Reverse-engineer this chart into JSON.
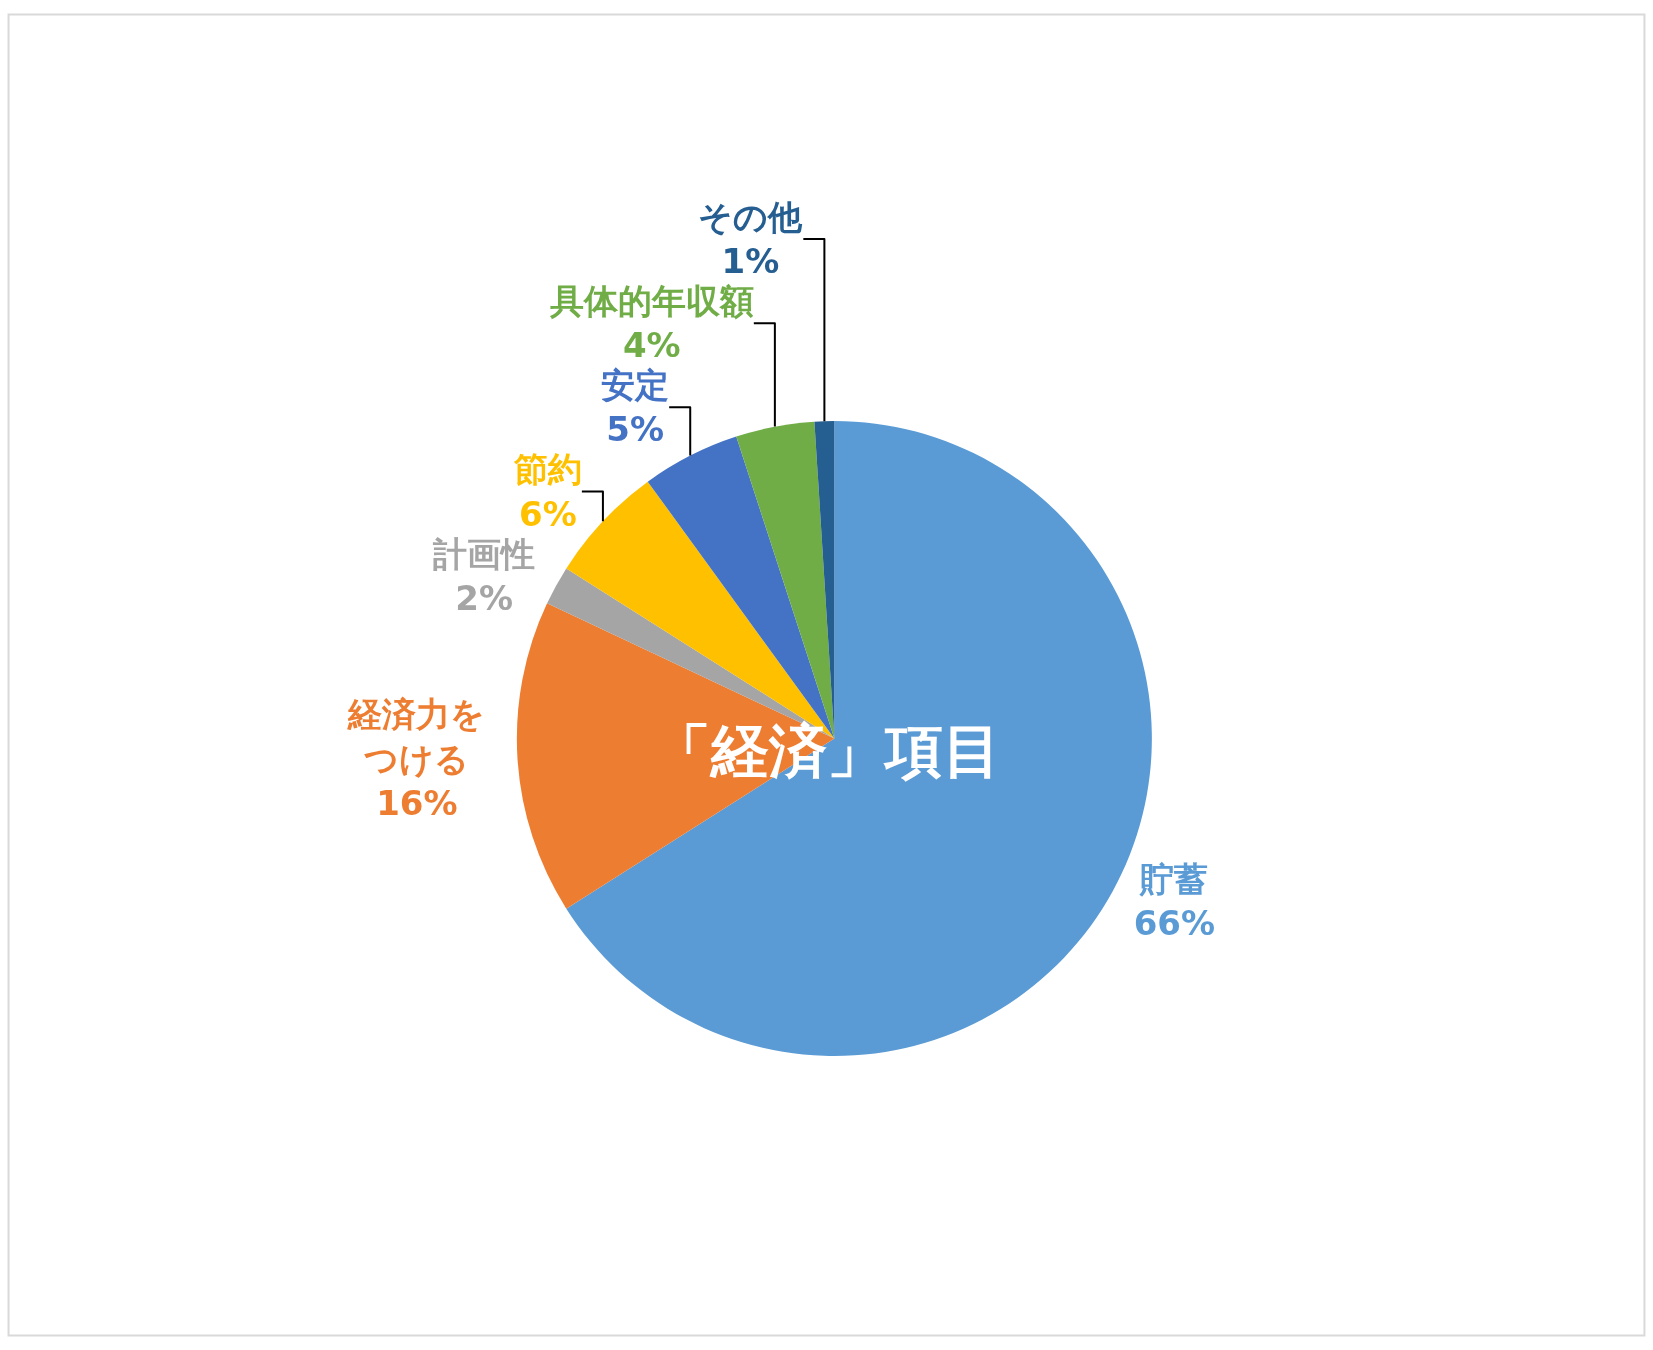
{
  "chart_data": {
    "type": "pie",
    "categories": [
      "貯蓄",
      "経済力をつける",
      "計画性",
      "節約",
      "安定",
      "具体的年収額",
      "その他"
    ],
    "values": [
      66,
      16,
      2,
      6,
      5,
      4,
      1
    ],
    "value_labels": [
      "66%",
      "16%",
      "2%",
      "6%",
      "5%",
      "4%",
      "1%"
    ],
    "colors": [
      "#5b9bd5",
      "#ed7d31",
      "#a5a5a5",
      "#ffc000",
      "#4472c4",
      "#70ad47",
      "#255e91"
    ],
    "annotations": [
      "「経済」項目"
    ],
    "legend": false
  }
}
